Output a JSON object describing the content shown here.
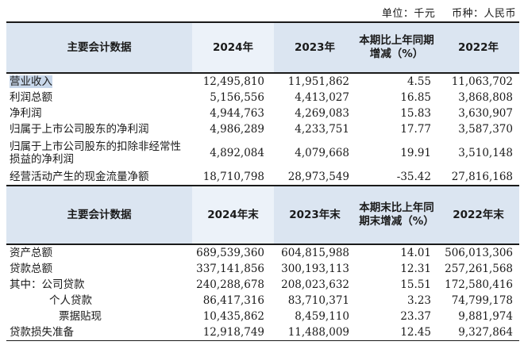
{
  "unit_line": {
    "unit": "单位：千元",
    "currency": "币种：人民币"
  },
  "table1": {
    "headers": [
      "主要会计数据",
      "2024年",
      "2023年",
      "本期比上年同期增减（%）",
      "2022年"
    ],
    "rows": [
      {
        "label": "营业收入",
        "v2024": "12,495,810",
        "v2023": "11,951,862",
        "change": "4.55",
        "v2022": "11,063,702"
      },
      {
        "label": "利润总额",
        "v2024": "5,156,556",
        "v2023": "4,413,027",
        "change": "16.85",
        "v2022": "3,868,808"
      },
      {
        "label": "净利润",
        "v2024": "4,944,763",
        "v2023": "4,269,083",
        "change": "15.83",
        "v2022": "3,630,907"
      },
      {
        "label": "归属于上市公司股东的净利润",
        "v2024": "4,986,289",
        "v2023": "4,233,751",
        "change": "17.77",
        "v2022": "3,587,370"
      },
      {
        "label": "归属于上市公司股东的扣除非经常性损益的净利润",
        "v2024": "4,892,084",
        "v2023": "4,079,668",
        "change": "19.91",
        "v2022": "3,510,148"
      },
      {
        "label": "经营活动产生的现金流量净额",
        "v2024": "18,710,798",
        "v2023": "28,973,549",
        "change": "-35.42",
        "v2022": "27,816,168"
      }
    ]
  },
  "table2": {
    "headers": [
      "主要会计数据",
      "2024年末",
      "2023年末",
      "本期末比上年同期末增减（%）",
      "2022年末"
    ],
    "rows": [
      {
        "label": "资产总额",
        "v2024": "689,539,360",
        "v2023": "604,815,988",
        "change": "14.01",
        "v2022": "506,013,306"
      },
      {
        "label": "贷款总额",
        "v2024": "337,141,856",
        "v2023": "300,193,113",
        "change": "12.31",
        "v2022": "257,261,568"
      },
      {
        "label": "其中：公司贷款",
        "v2024": "240,288,678",
        "v2023": "208,023,632",
        "change": "15.51",
        "v2022": "172,580,416"
      },
      {
        "label": "个人贷款",
        "v2024": "86,417,316",
        "v2023": "83,710,371",
        "change": "3.23",
        "v2022": "74,799,178"
      },
      {
        "label": "票据贴现",
        "v2024": "10,435,862",
        "v2023": "8,459,110",
        "change": "23.37",
        "v2022": "9,881,974"
      },
      {
        "label": "贷款损失准备",
        "v2024": "12,918,749",
        "v2023": "11,488,009",
        "change": "12.45",
        "v2022": "9,327,864"
      }
    ]
  }
}
